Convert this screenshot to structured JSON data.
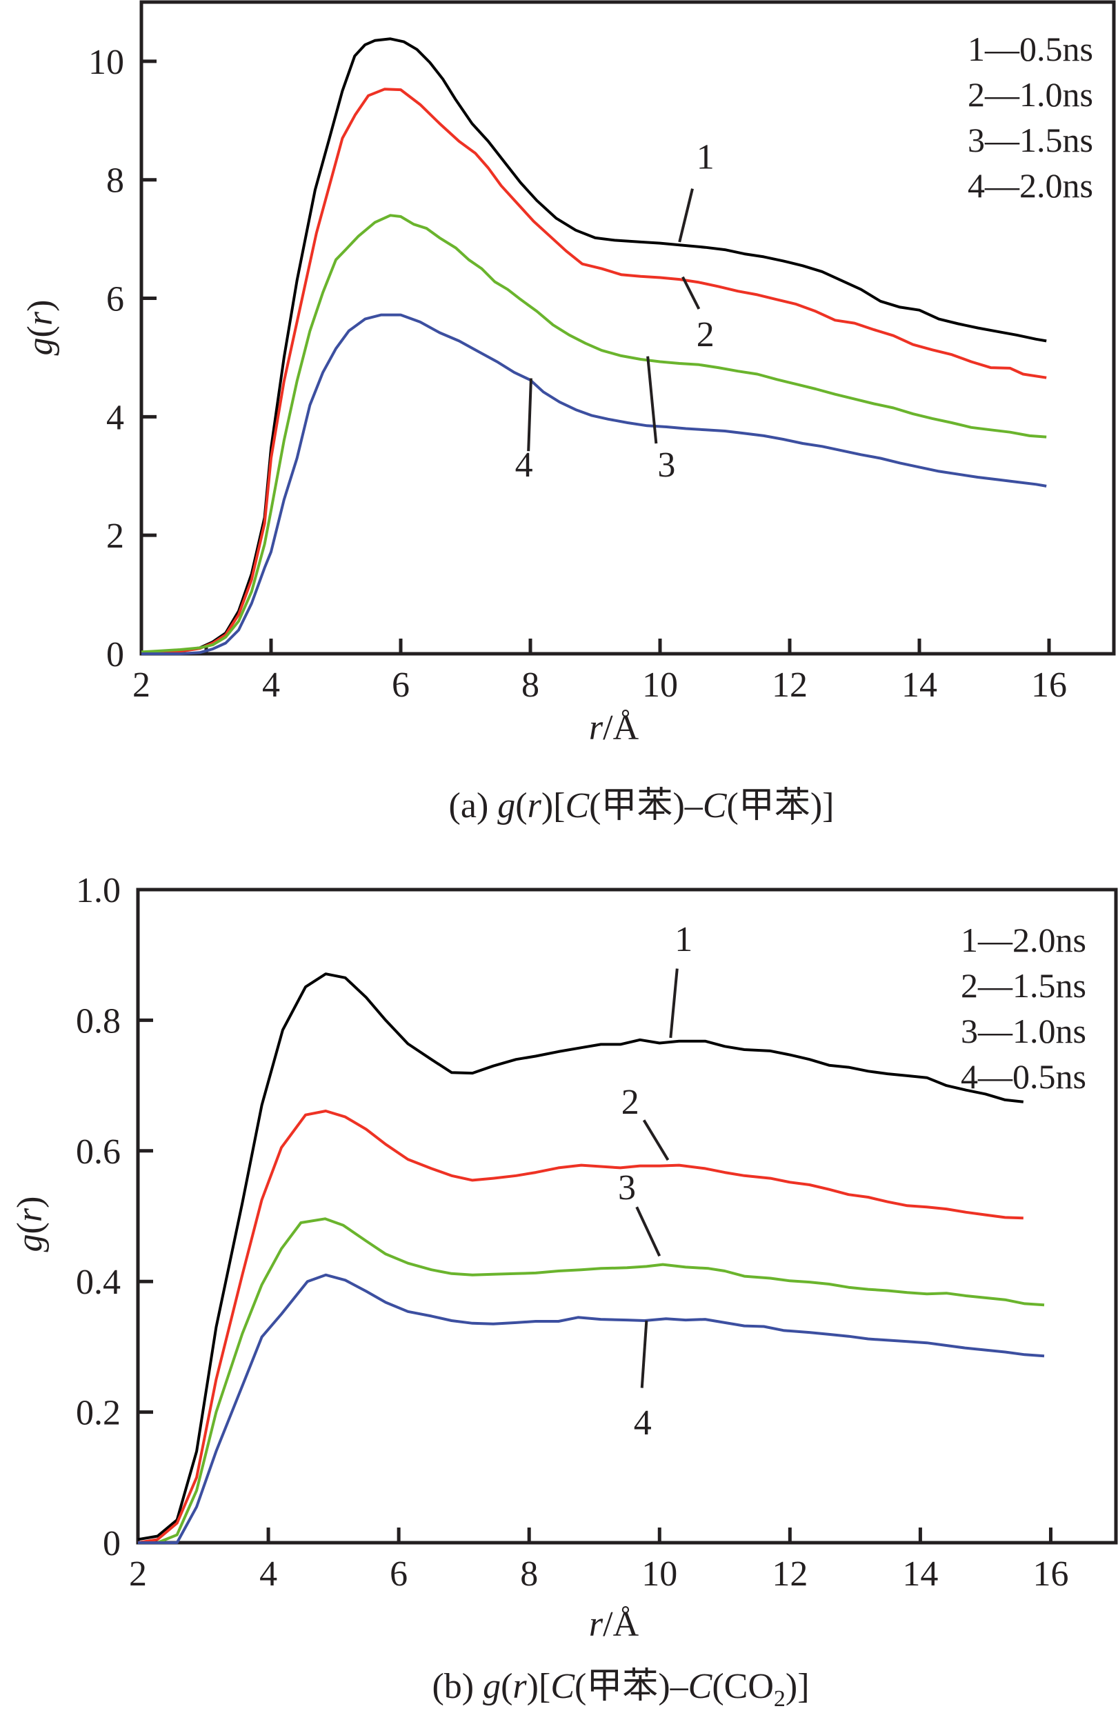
{
  "chart_data": [
    {
      "type": "line",
      "panel": "a",
      "title": "",
      "caption": {
        "prefix": "(a) ",
        "g": "g",
        "r": "r",
        "body1": ")[",
        "C1": "C",
        "mid1": "(甲苯)–",
        "C2": "C",
        "mid2": "(甲苯)]"
      },
      "caption_text": "(a) g(r)[C(甲苯)–C(甲苯)]",
      "xlabel": "r/Å",
      "ylabel": "g(r)",
      "xlim": [
        2,
        17
      ],
      "ylim": [
        0,
        11
      ],
      "xticks": [
        2,
        4,
        6,
        8,
        10,
        12,
        14,
        16
      ],
      "xminor": [
        3
      ],
      "yticks": [
        0,
        2,
        4,
        6,
        8,
        10
      ],
      "grid": false,
      "legend": {
        "position": "top-right",
        "entries": [
          "1—0.5ns",
          "2—1.0ns",
          "3—1.5ns",
          "4—2.0ns"
        ]
      },
      "series": [
        {
          "name": "1—0.5ns",
          "label": "1",
          "color": "#000000",
          "x": [
            2.0,
            2.3,
            2.6,
            2.9,
            3.1,
            3.3,
            3.5,
            3.7,
            3.9,
            4.0,
            4.2,
            4.4,
            4.68,
            4.9,
            5.1,
            5.29,
            5.45,
            5.6,
            5.84,
            6.05,
            6.25,
            6.45,
            6.65,
            6.85,
            7.1,
            7.35,
            7.6,
            7.85,
            8.1,
            8.4,
            8.7,
            9.0,
            9.3,
            9.7,
            10.0,
            10.3,
            10.7,
            11.0,
            11.3,
            11.6,
            11.9,
            12.2,
            12.5,
            12.8,
            13.1,
            13.4,
            13.7,
            14.0,
            14.3,
            14.6,
            14.9,
            15.2,
            15.5,
            15.8,
            15.96
          ],
          "y": [
            0.0,
            0.02,
            0.05,
            0.1,
            0.2,
            0.35,
            0.72,
            1.35,
            2.3,
            3.47,
            5.0,
            6.3,
            7.83,
            8.7,
            9.5,
            10.09,
            10.28,
            10.35,
            10.38,
            10.33,
            10.2,
            9.98,
            9.7,
            9.35,
            8.95,
            8.65,
            8.3,
            7.95,
            7.65,
            7.35,
            7.15,
            7.02,
            6.98,
            6.95,
            6.93,
            6.9,
            6.86,
            6.82,
            6.75,
            6.7,
            6.63,
            6.55,
            6.45,
            6.3,
            6.15,
            5.95,
            5.85,
            5.8,
            5.65,
            5.57,
            5.5,
            5.44,
            5.38,
            5.31,
            5.28
          ]
        },
        {
          "name": "2—1.0ns",
          "label": "2",
          "color": "#ee3224",
          "x": [
            2.0,
            2.3,
            2.6,
            2.9,
            3.1,
            3.3,
            3.5,
            3.7,
            3.9,
            4.0,
            4.2,
            4.4,
            4.6,
            4.7,
            4.9,
            5.1,
            5.3,
            5.5,
            5.75,
            6.0,
            6.3,
            6.6,
            6.9,
            7.15,
            7.35,
            7.55,
            7.8,
            8.05,
            8.3,
            8.55,
            8.8,
            9.1,
            9.4,
            9.7,
            10.0,
            10.3,
            10.6,
            10.9,
            11.2,
            11.5,
            11.8,
            12.1,
            12.4,
            12.7,
            13.0,
            13.3,
            13.6,
            13.9,
            14.2,
            14.5,
            14.8,
            15.1,
            15.4,
            15.6,
            15.96
          ],
          "y": [
            0.0,
            0.02,
            0.04,
            0.09,
            0.18,
            0.32,
            0.66,
            1.25,
            2.2,
            3.3,
            4.6,
            5.6,
            6.6,
            7.1,
            7.9,
            8.7,
            9.1,
            9.42,
            9.53,
            9.52,
            9.27,
            8.95,
            8.65,
            8.45,
            8.2,
            7.9,
            7.6,
            7.3,
            7.05,
            6.8,
            6.58,
            6.5,
            6.4,
            6.37,
            6.35,
            6.32,
            6.27,
            6.2,
            6.12,
            6.06,
            5.98,
            5.9,
            5.78,
            5.63,
            5.58,
            5.47,
            5.37,
            5.22,
            5.13,
            5.05,
            4.93,
            4.83,
            4.82,
            4.72,
            4.66
          ]
        },
        {
          "name": "3—1.5ns",
          "label": "3",
          "color": "#6ab42d",
          "x": [
            2.0,
            2.3,
            2.6,
            2.9,
            3.1,
            3.3,
            3.5,
            3.7,
            3.9,
            4.0,
            4.2,
            4.4,
            4.6,
            4.8,
            5.0,
            5.15,
            5.35,
            5.6,
            5.84,
            6.0,
            6.2,
            6.4,
            6.6,
            6.85,
            7.05,
            7.25,
            7.45,
            7.65,
            7.85,
            8.1,
            8.35,
            8.6,
            8.85,
            9.1,
            9.4,
            9.7,
            10.0,
            10.3,
            10.6,
            10.9,
            11.2,
            11.5,
            11.8,
            12.1,
            12.4,
            12.7,
            13.0,
            13.3,
            13.6,
            13.9,
            14.2,
            14.5,
            14.8,
            15.1,
            15.4,
            15.7,
            15.96
          ],
          "y": [
            0.03,
            0.05,
            0.07,
            0.1,
            0.15,
            0.28,
            0.55,
            1.05,
            1.85,
            2.42,
            3.6,
            4.6,
            5.45,
            6.1,
            6.65,
            6.82,
            7.05,
            7.28,
            7.4,
            7.38,
            7.25,
            7.18,
            7.02,
            6.85,
            6.65,
            6.5,
            6.28,
            6.15,
            5.98,
            5.78,
            5.55,
            5.38,
            5.24,
            5.12,
            5.03,
            4.97,
            4.93,
            4.9,
            4.88,
            4.83,
            4.77,
            4.72,
            4.63,
            4.55,
            4.47,
            4.38,
            4.3,
            4.22,
            4.15,
            4.05,
            3.97,
            3.9,
            3.82,
            3.78,
            3.74,
            3.68,
            3.66
          ]
        },
        {
          "name": "4—2.0ns",
          "label": "4",
          "color": "#3c4fa0",
          "x": [
            2.0,
            2.3,
            2.6,
            2.9,
            3.1,
            3.3,
            3.5,
            3.7,
            3.9,
            4.0,
            4.2,
            4.4,
            4.6,
            4.8,
            5.0,
            5.2,
            5.45,
            5.7,
            6.0,
            6.3,
            6.6,
            6.9,
            7.2,
            7.5,
            7.75,
            8.0,
            8.2,
            8.45,
            8.7,
            8.95,
            9.2,
            9.5,
            9.8,
            10.1,
            10.4,
            10.7,
            11.0,
            11.3,
            11.6,
            11.9,
            12.2,
            12.5,
            12.8,
            13.1,
            13.4,
            13.7,
            14.0,
            14.3,
            14.6,
            14.9,
            15.2,
            15.5,
            15.8,
            15.96
          ],
          "y": [
            0.0,
            0.0,
            0.0,
            0.02,
            0.08,
            0.18,
            0.4,
            0.85,
            1.45,
            1.72,
            2.6,
            3.3,
            4.2,
            4.75,
            5.15,
            5.45,
            5.65,
            5.72,
            5.72,
            5.6,
            5.42,
            5.28,
            5.1,
            4.92,
            4.75,
            4.62,
            4.42,
            4.25,
            4.12,
            4.02,
            3.96,
            3.9,
            3.85,
            3.83,
            3.8,
            3.78,
            3.76,
            3.72,
            3.68,
            3.62,
            3.55,
            3.5,
            3.43,
            3.36,
            3.3,
            3.22,
            3.15,
            3.08,
            3.03,
            2.98,
            2.94,
            2.9,
            2.86,
            2.83
          ]
        }
      ],
      "annotations": [
        {
          "text": "1",
          "x": 10.7,
          "y": 8.4,
          "line": [
            [
              10.5,
              7.85
            ],
            [
              10.3,
              6.95
            ]
          ]
        },
        {
          "text": "2",
          "x": 10.7,
          "y": 5.4,
          "line": [
            [
              10.6,
              5.82
            ],
            [
              10.35,
              6.36
            ]
          ]
        },
        {
          "text": "3",
          "x": 10.1,
          "y": 3.2,
          "line": [
            [
              9.94,
              3.55
            ],
            [
              9.81,
              5.02
            ]
          ]
        },
        {
          "text": "4",
          "x": 7.9,
          "y": 3.2,
          "line": [
            [
              7.97,
              3.42
            ],
            [
              8.01,
              4.65
            ]
          ]
        }
      ]
    },
    {
      "type": "line",
      "panel": "b",
      "title": "",
      "caption_text": "(b) g(r)[C(甲苯)–C(CO2)]",
      "xlabel": "r/Å",
      "ylabel": "g(r)",
      "xlim": [
        2,
        17
      ],
      "ylim": [
        0,
        1.0
      ],
      "xticks": [
        2,
        4,
        6,
        8,
        10,
        12,
        14,
        16
      ],
      "yticks": [
        0,
        0.2,
        0.4,
        0.6,
        0.8,
        1.0
      ],
      "ytick_labels": [
        "0",
        "0.2",
        "0.4",
        "0.6",
        "0.8",
        "1.0"
      ],
      "grid": false,
      "legend": {
        "position": "top-right",
        "entries": [
          "1—2.0ns",
          "2—1.5ns",
          "3—1.0ns",
          "4—0.5ns"
        ]
      },
      "series": [
        {
          "name": "1—2.0ns",
          "label": "1",
          "color": "#000000",
          "x": [
            2.0,
            2.3,
            2.6,
            2.9,
            3.2,
            3.6,
            3.9,
            4.22,
            4.57,
            4.88,
            5.18,
            5.5,
            5.8,
            6.14,
            6.5,
            6.81,
            7.13,
            7.45,
            7.8,
            8.1,
            8.45,
            8.8,
            9.1,
            9.4,
            9.7,
            10.0,
            10.3,
            10.7,
            11.0,
            11.3,
            11.7,
            12.0,
            12.3,
            12.6,
            12.9,
            13.2,
            13.5,
            13.8,
            14.1,
            14.4,
            14.7,
            15.0,
            15.3,
            15.58
          ],
          "y": [
            0.005,
            0.01,
            0.035,
            0.14,
            0.33,
            0.52,
            0.67,
            0.785,
            0.851,
            0.871,
            0.865,
            0.835,
            0.8,
            0.764,
            0.74,
            0.72,
            0.719,
            0.73,
            0.74,
            0.745,
            0.752,
            0.758,
            0.763,
            0.763,
            0.77,
            0.765,
            0.768,
            0.768,
            0.76,
            0.755,
            0.753,
            0.747,
            0.74,
            0.731,
            0.728,
            0.722,
            0.718,
            0.715,
            0.712,
            0.7,
            0.693,
            0.687,
            0.678,
            0.675
          ]
        },
        {
          "name": "2—1.5ns",
          "label": "2",
          "color": "#ee3224",
          "x": [
            2.0,
            2.3,
            2.6,
            2.9,
            3.2,
            3.6,
            3.9,
            4.2,
            4.57,
            4.88,
            5.18,
            5.5,
            5.8,
            6.14,
            6.5,
            6.81,
            7.13,
            7.45,
            7.8,
            8.1,
            8.45,
            8.8,
            9.1,
            9.4,
            9.7,
            10.0,
            10.3,
            10.7,
            11.0,
            11.3,
            11.7,
            12.0,
            12.3,
            12.6,
            12.9,
            13.2,
            13.5,
            13.8,
            14.1,
            14.4,
            14.7,
            15.0,
            15.3,
            15.58
          ],
          "y": [
            0.0,
            0.005,
            0.03,
            0.1,
            0.25,
            0.41,
            0.525,
            0.605,
            0.655,
            0.661,
            0.652,
            0.633,
            0.61,
            0.587,
            0.573,
            0.562,
            0.555,
            0.558,
            0.562,
            0.567,
            0.574,
            0.578,
            0.576,
            0.574,
            0.577,
            0.577,
            0.578,
            0.573,
            0.567,
            0.562,
            0.558,
            0.552,
            0.548,
            0.541,
            0.533,
            0.529,
            0.522,
            0.516,
            0.514,
            0.511,
            0.506,
            0.502,
            0.498,
            0.497
          ]
        },
        {
          "name": "3—1.0ns",
          "label": "3",
          "color": "#6ab42d",
          "x": [
            2.0,
            2.3,
            2.6,
            2.9,
            3.2,
            3.6,
            3.9,
            4.2,
            4.5,
            4.87,
            5.15,
            5.5,
            5.8,
            6.14,
            6.5,
            6.81,
            7.13,
            7.45,
            7.8,
            8.1,
            8.45,
            8.8,
            9.1,
            9.5,
            9.8,
            10.05,
            10.4,
            10.75,
            11.0,
            11.3,
            11.7,
            12.0,
            12.3,
            12.6,
            12.9,
            13.2,
            13.5,
            13.8,
            14.1,
            14.4,
            14.7,
            15.0,
            15.3,
            15.6,
            15.9
          ],
          "y": [
            0.0,
            0.0,
            0.012,
            0.08,
            0.2,
            0.32,
            0.395,
            0.45,
            0.49,
            0.496,
            0.486,
            0.462,
            0.442,
            0.428,
            0.418,
            0.412,
            0.41,
            0.411,
            0.412,
            0.413,
            0.416,
            0.418,
            0.42,
            0.421,
            0.423,
            0.426,
            0.422,
            0.42,
            0.416,
            0.408,
            0.405,
            0.401,
            0.399,
            0.396,
            0.391,
            0.388,
            0.386,
            0.383,
            0.381,
            0.382,
            0.378,
            0.375,
            0.372,
            0.366,
            0.364
          ]
        },
        {
          "name": "4—0.5ns",
          "label": "4",
          "color": "#3c4fa0",
          "x": [
            2.0,
            2.3,
            2.6,
            2.9,
            3.2,
            3.6,
            3.9,
            4.2,
            4.6,
            4.88,
            5.18,
            5.5,
            5.8,
            6.14,
            6.5,
            6.81,
            7.13,
            7.45,
            7.8,
            8.1,
            8.45,
            8.75,
            9.1,
            9.5,
            9.77,
            10.1,
            10.4,
            10.7,
            11.0,
            11.3,
            11.6,
            11.9,
            12.3,
            12.6,
            12.9,
            13.2,
            13.5,
            13.8,
            14.1,
            14.4,
            14.7,
            15.0,
            15.3,
            15.6,
            15.9
          ],
          "y": [
            0.0,
            0.0,
            0.0,
            0.055,
            0.14,
            0.24,
            0.315,
            0.35,
            0.4,
            0.41,
            0.402,
            0.385,
            0.368,
            0.354,
            0.347,
            0.34,
            0.336,
            0.335,
            0.337,
            0.339,
            0.339,
            0.345,
            0.342,
            0.341,
            0.34,
            0.343,
            0.341,
            0.342,
            0.337,
            0.332,
            0.331,
            0.325,
            0.322,
            0.319,
            0.316,
            0.312,
            0.31,
            0.308,
            0.306,
            0.302,
            0.298,
            0.295,
            0.292,
            0.288,
            0.286
          ]
        }
      ],
      "annotations": [
        {
          "text": "1",
          "x": 10.37,
          "y": 0.925,
          "line": [
            [
              10.27,
              0.879
            ],
            [
              10.17,
              0.773
            ]
          ]
        },
        {
          "text": "2",
          "x": 9.55,
          "y": 0.676,
          "line": [
            [
              9.76,
              0.647
            ],
            [
              10.13,
              0.586
            ]
          ]
        },
        {
          "text": "3",
          "x": 9.5,
          "y": 0.545,
          "line": [
            [
              9.65,
              0.514
            ],
            [
              10.0,
              0.439
            ]
          ]
        },
        {
          "text": "4",
          "x": 9.74,
          "y": 0.185,
          "line": [
            [
              9.8,
              0.34
            ],
            [
              9.73,
              0.237
            ]
          ]
        }
      ]
    }
  ],
  "panel_a": {
    "ylabel_g": "g",
    "ylabel_r": "r",
    "xlabel_r": "r",
    "xlabel_unit": "/Å",
    "caption_parts": [
      "(a) ",
      "g",
      "(",
      "r",
      ")[",
      "C",
      "(甲苯)–",
      "C",
      "(甲苯)]"
    ]
  },
  "panel_b": {
    "ylabel_g": "g",
    "ylabel_r": "r",
    "xlabel_r": "r",
    "xlabel_unit": "/Å",
    "caption_parts": [
      "(b) ",
      "g",
      "(",
      "r",
      ")[",
      "C",
      "(甲苯)–",
      "C",
      "(CO",
      "2",
      ")]"
    ]
  }
}
